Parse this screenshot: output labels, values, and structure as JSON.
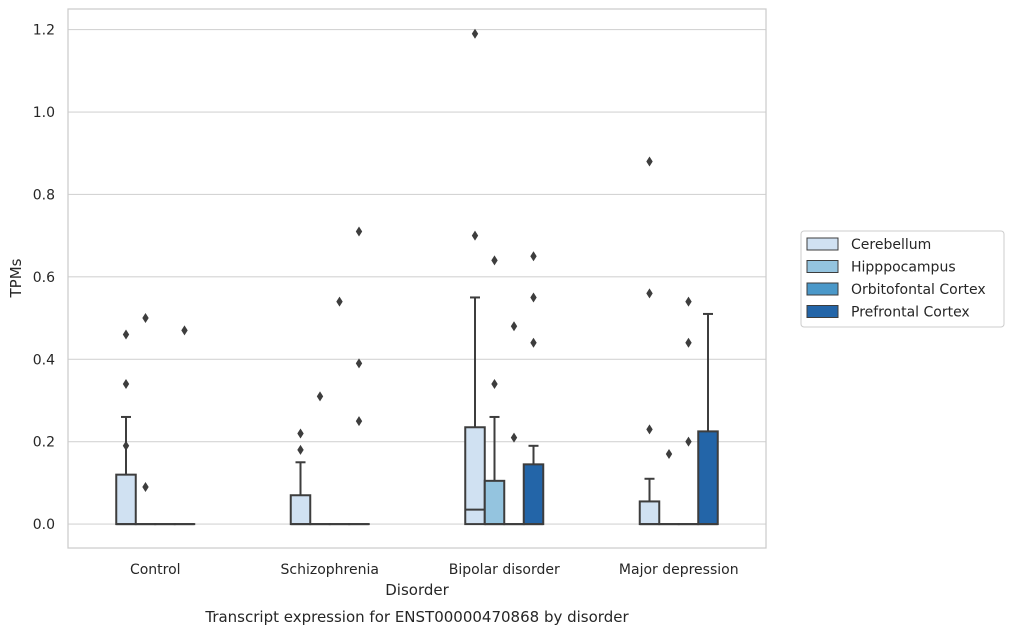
{
  "chart_data": {
    "type": "boxplot",
    "title": "Transcript expression for ENST00000470868 by disorder",
    "xlabel": "Disorder",
    "ylabel": "TPMs",
    "ylim": [
      -0.058,
      1.25
    ],
    "yticks": [
      "0.0",
      "0.2",
      "0.4",
      "0.6",
      "0.8",
      "1.0",
      "1.2"
    ],
    "ytick_values": [
      0,
      0.2,
      0.4,
      0.6,
      0.8,
      1.0,
      1.2
    ],
    "grid": true,
    "legend_position": "right",
    "categories": [
      "Control",
      "Schizophrenia",
      "Bipolar disorder",
      "Major depression"
    ],
    "series": [
      {
        "name": "Cerebellum",
        "color": "#d0e1f2",
        "boxes": [
          {
            "q1": 0,
            "median": 0,
            "q3": 0.12,
            "whisker_low": 0,
            "whisker_high": 0.26,
            "outliers": [
              0.34,
              0.46,
              0.19
            ]
          },
          {
            "q1": 0,
            "median": 0,
            "q3": 0.07,
            "whisker_low": 0,
            "whisker_high": 0.15,
            "outliers": [
              0.22,
              0.18
            ]
          },
          {
            "q1": 0,
            "median": 0.035,
            "q3": 0.235,
            "whisker_low": 0,
            "whisker_high": 0.55,
            "outliers": [
              1.19,
              0.7
            ]
          },
          {
            "q1": 0,
            "median": 0,
            "q3": 0.055,
            "whisker_low": 0,
            "whisker_high": 0.11,
            "outliers": [
              0.88,
              0.56,
              0.23
            ]
          }
        ]
      },
      {
        "name": "Hipppocampus",
        "color": "#94c4df",
        "boxes": [
          {
            "q1": 0,
            "median": 0,
            "q3": 0,
            "whisker_low": 0,
            "whisker_high": 0,
            "outliers": [
              0.09,
              0.5
            ]
          },
          {
            "q1": 0,
            "median": 0,
            "q3": 0,
            "whisker_low": 0,
            "whisker_high": 0,
            "outliers": [
              0.31
            ]
          },
          {
            "q1": 0,
            "median": 0,
            "q3": 0.105,
            "whisker_low": 0,
            "whisker_high": 0.26,
            "outliers": [
              0.64,
              0.34
            ]
          },
          {
            "q1": 0,
            "median": 0,
            "q3": 0,
            "whisker_low": 0,
            "whisker_high": 0,
            "outliers": [
              0.17
            ]
          }
        ]
      },
      {
        "name": "Orbitofontal Cortex",
        "color": "#4a98c9",
        "boxes": [
          {
            "q1": 0,
            "median": 0,
            "q3": 0,
            "whisker_low": 0,
            "whisker_high": 0,
            "outliers": []
          },
          {
            "q1": 0,
            "median": 0,
            "q3": 0,
            "whisker_low": 0,
            "whisker_high": 0,
            "outliers": [
              0.54
            ]
          },
          {
            "q1": 0,
            "median": 0,
            "q3": 0,
            "whisker_low": 0,
            "whisker_high": 0,
            "outliers": [
              0.48,
              0.21
            ]
          },
          {
            "q1": 0,
            "median": 0,
            "q3": 0,
            "whisker_low": 0,
            "whisker_high": 0,
            "outliers": [
              0.54,
              0.44,
              0.2
            ]
          }
        ]
      },
      {
        "name": "Prefrontal Cortex",
        "color": "#2365a8",
        "boxes": [
          {
            "q1": 0,
            "median": 0,
            "q3": 0,
            "whisker_low": 0,
            "whisker_high": 0,
            "outliers": [
              0.47
            ]
          },
          {
            "q1": 0,
            "median": 0,
            "q3": 0,
            "whisker_low": 0,
            "whisker_high": 0,
            "outliers": [
              0.71,
              0.39,
              0.25
            ]
          },
          {
            "q1": 0,
            "median": 0,
            "q3": 0.145,
            "whisker_low": 0,
            "whisker_high": 0.19,
            "outliers": [
              0.65,
              0.55,
              0.44
            ]
          },
          {
            "q1": 0,
            "median": 0,
            "q3": 0.225,
            "whisker_low": 0,
            "whisker_high": 0.51,
            "outliers": []
          }
        ]
      }
    ]
  }
}
